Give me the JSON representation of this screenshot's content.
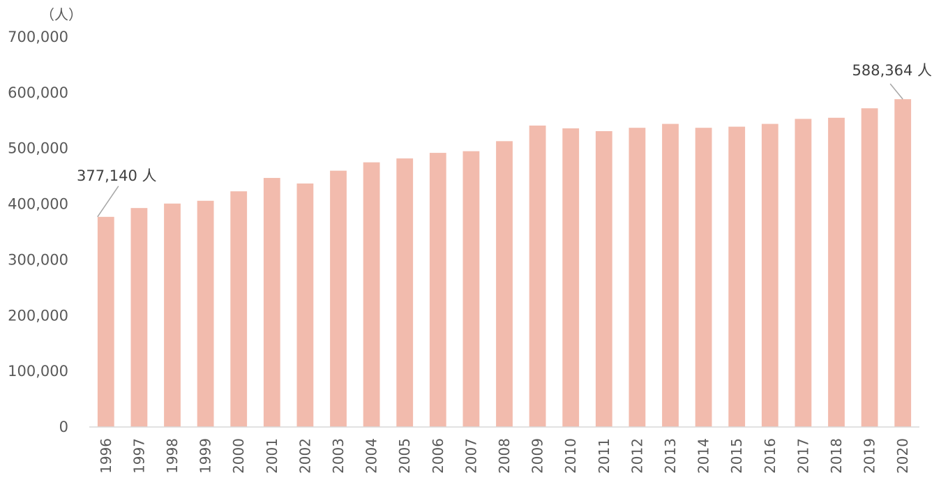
{
  "chart_data": {
    "type": "bar",
    "unit_label": "（人）",
    "categories": [
      "1996",
      "1997",
      "1998",
      "1999",
      "2000",
      "2001",
      "2002",
      "2003",
      "2004",
      "2005",
      "2006",
      "2007",
      "2008",
      "2009",
      "2010",
      "2011",
      "2012",
      "2013",
      "2014",
      "2015",
      "2016",
      "2017",
      "2018",
      "2019",
      "2020"
    ],
    "values": [
      377140,
      393000,
      401000,
      406000,
      423000,
      447000,
      437000,
      460000,
      475000,
      482000,
      492000,
      495000,
      513000,
      541000,
      536000,
      531000,
      537000,
      544000,
      537000,
      539000,
      544000,
      553000,
      555000,
      572000,
      588364
    ],
    "ylim": [
      0,
      700000
    ],
    "yticks": [
      0,
      100000,
      200000,
      300000,
      400000,
      500000,
      600000,
      700000
    ],
    "ytick_labels": [
      "0",
      "100,000",
      "200,000",
      "300,000",
      "400,000",
      "500,000",
      "600,000",
      "700,000"
    ],
    "bar_color": "#F2BBAD",
    "grid": false,
    "annotations": [
      {
        "category": "1996",
        "text": "377,140 人"
      },
      {
        "category": "2020",
        "text": "588,364 人"
      }
    ]
  }
}
